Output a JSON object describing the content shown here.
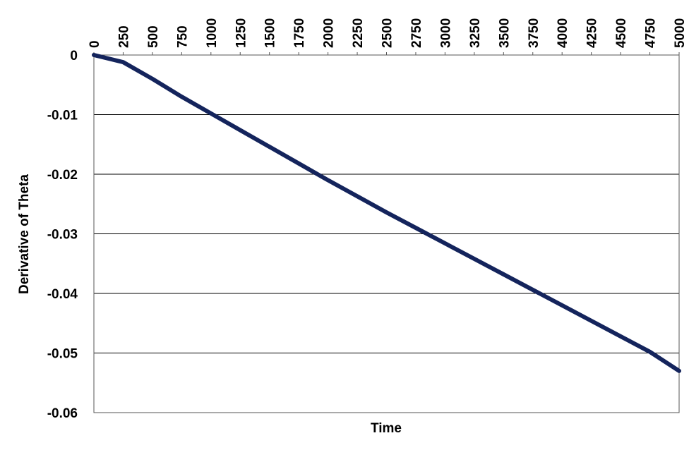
{
  "chart_data": {
    "type": "line",
    "x_label": "Time",
    "y_label": "Derivative of Theta",
    "x": [
      0,
      250,
      500,
      750,
      1000,
      1250,
      1500,
      1750,
      2000,
      2250,
      2500,
      2750,
      3000,
      3250,
      3500,
      3750,
      4000,
      4250,
      4500,
      4750,
      5000
    ],
    "series": [
      {
        "color": "#14245c",
        "values": [
          0,
          -0.0012,
          -0.004,
          -0.007,
          -0.0098,
          -0.0126,
          -0.0154,
          -0.0182,
          -0.021,
          -0.0237,
          -0.0264,
          -0.029,
          -0.0316,
          -0.0342,
          -0.0368,
          -0.0394,
          -0.042,
          -0.0446,
          -0.0472,
          -0.0498,
          -0.053
        ]
      }
    ],
    "xlim": [
      0,
      5000
    ],
    "xticks": [
      0,
      250,
      500,
      750,
      1000,
      1250,
      1500,
      1750,
      2000,
      2250,
      2500,
      2750,
      3000,
      3250,
      3500,
      3750,
      4000,
      4250,
      4500,
      4750,
      5000
    ],
    "ylim": [
      -0.06,
      0
    ],
    "yticks": [
      0,
      -0.01,
      -0.02,
      -0.03,
      -0.04,
      -0.05,
      -0.06
    ],
    "grid": true
  }
}
